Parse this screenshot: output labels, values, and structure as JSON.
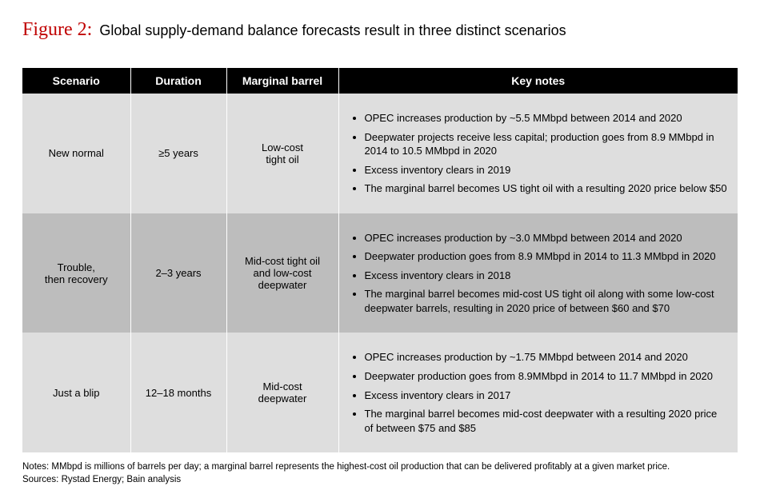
{
  "figure": {
    "label": "Figure 2:",
    "caption": "Global supply-demand balance forecasts result in three distinct scenarios"
  },
  "table": {
    "columns": [
      "Scenario",
      "Duration",
      "Marginal barrel",
      "Key notes"
    ],
    "rows": [
      {
        "scenario": "New normal",
        "duration": "≥5 years",
        "marginal": "Low-cost\ntight oil",
        "notes": [
          "OPEC increases production by ~5.5 MMbpd between 2014 and 2020",
          "Deepwater projects receive less capital; production goes from 8.9 MMbpd in 2014 to 10.5 MMbpd in 2020",
          "Excess inventory clears in 2019",
          "The marginal barrel becomes US tight oil with a resulting 2020 price below $50"
        ]
      },
      {
        "scenario": "Trouble,\nthen recovery",
        "duration": "2–3 years",
        "marginal": "Mid-cost tight oil\nand low-cost\ndeepwater",
        "notes": [
          "OPEC increases production by ~3.0 MMbpd between 2014 and 2020",
          "Deepwater production goes from 8.9 MMbpd in 2014 to 11.3 MMbpd in 2020",
          "Excess inventory clears in 2018",
          "The marginal barrel becomes mid-cost US tight oil along with some low-cost deepwater barrels, resulting in 2020 price of between $60 and $70"
        ]
      },
      {
        "scenario": "Just a blip",
        "duration": "12–18 months",
        "marginal": "Mid-cost\ndeepwater",
        "notes": [
          "OPEC increases production by ~1.75 MMbpd between 2014 and 2020",
          "Deepwater production goes from 8.9MMbpd in 2014 to 11.7 MMbpd in 2020",
          "Excess inventory clears in 2017",
          "The marginal barrel becomes mid-cost deepwater with a resulting 2020 price of between $75 and $85"
        ]
      }
    ]
  },
  "footnotes": {
    "notes": "Notes: MMbpd is millions of barrels per day; a marginal barrel represents the highest-cost oil production that can be delivered profitably at a given market price.",
    "sources": "Sources: Rystad Energy; Bain analysis"
  },
  "style": {
    "row_a_bg": "#dedede",
    "row_b_bg": "#bdbdbd",
    "header_bg": "#000000",
    "header_fg": "#ffffff",
    "figure_label_color": "#c00000"
  }
}
